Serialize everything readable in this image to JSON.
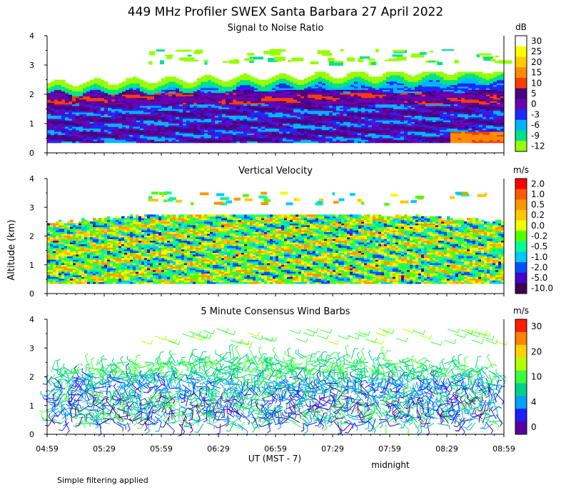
{
  "title": "449 MHz Profiler SWEX Santa Barbara 27 April 2022",
  "y_axis_label": "Altitude (km)",
  "x_axis_label": "UT  (MST - 7)",
  "x_annotation": "midnight",
  "footnote": "Simple filtering applied",
  "chart_data": [
    {
      "type": "heatmap",
      "title": "Signal to Noise Ratio",
      "x_ticks": [
        "04:59",
        "05:29",
        "05:59",
        "06:29",
        "06:59",
        "07:29",
        "07:59",
        "08:29",
        "08:59"
      ],
      "y_ticks": [
        "0",
        "1",
        "2",
        "3",
        "4"
      ],
      "ylim": [
        0,
        4
      ],
      "colorbar": {
        "unit": "dB",
        "labels": [
          "30",
          "25",
          "20",
          "15",
          "10",
          "5",
          "0",
          "-3",
          "-6",
          "-9",
          "-12"
        ],
        "colors": [
          "#ffffff",
          "#ffff00",
          "#ffcc00",
          "#ff8c00",
          "#ff3c00",
          "#4b0082",
          "#6a00b0",
          "#1e28ff",
          "#00b4ff",
          "#00e18c",
          "#96ff00"
        ]
      }
    },
    {
      "type": "heatmap",
      "title": "Vertical Velocity",
      "x_ticks": [
        "04:59",
        "05:29",
        "05:59",
        "06:29",
        "06:59",
        "07:29",
        "07:59",
        "08:29",
        "08:59"
      ],
      "y_ticks": [
        "0",
        "1",
        "2",
        "3",
        "4"
      ],
      "ylim": [
        0,
        4
      ],
      "colorbar": {
        "unit": "m/s",
        "labels": [
          "2.0",
          "1.0",
          "0.5",
          "0.2",
          "0.0",
          "-0.2",
          "-0.5",
          "-1.0",
          "-2.0",
          "-5.0",
          "-10.0"
        ],
        "colors": [
          "#ff0000",
          "#ff5a00",
          "#ff9600",
          "#ffc800",
          "#f0ff00",
          "#50ff00",
          "#00ff96",
          "#00c8ff",
          "#0050ff",
          "#4600c8",
          "#3c0050"
        ]
      }
    },
    {
      "type": "scatter",
      "title": "5 Minute Consensus Wind Barbs",
      "x_ticks": [
        "04:59",
        "05:29",
        "05:59",
        "06:29",
        "06:59",
        "07:29",
        "07:59",
        "08:29",
        "08:59"
      ],
      "y_ticks": [
        "0",
        "1",
        "2",
        "3",
        "4"
      ],
      "ylim": [
        0,
        4
      ],
      "colorbar": {
        "unit": "m/s",
        "labels": [
          "30",
          "20",
          "10",
          "4",
          "0"
        ],
        "colors": [
          "#ff1e00",
          "#ff8200",
          "#ffd200",
          "#b4ff00",
          "#3cff3c",
          "#00d28c",
          "#00a0ff",
          "#1e1eff",
          "#5a00a0"
        ]
      }
    }
  ]
}
